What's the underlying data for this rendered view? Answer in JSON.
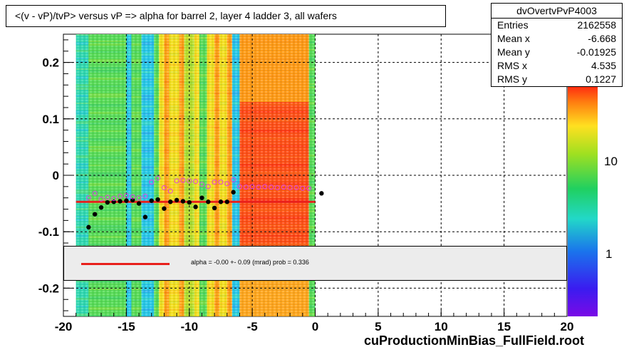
{
  "chart_data": {
    "type": "heatmap",
    "title": "<(v - vP)/tvP> versus   vP => alpha for barrel 2, layer 4 ladder 3, all wafers",
    "xlabel": "cuProductionMinBias_FullField.root",
    "ylabel": "",
    "xlim": [
      -20,
      20
    ],
    "ylim": [
      -0.25,
      0.25
    ],
    "x_ticks": [
      -20,
      -15,
      -10,
      -5,
      0,
      5,
      10,
      15,
      20
    ],
    "y_ticks": [
      0.2,
      0.1,
      0,
      -0.1,
      -0.2
    ],
    "x_tick_labels": [
      "-20",
      "-15",
      "-10",
      "-5",
      "0",
      "5",
      "10",
      "15",
      "20"
    ],
    "y_tick_labels": [
      "0.2",
      "0.1",
      "0",
      "-0.1",
      "-0.2"
    ],
    "grid": true,
    "heatmap_x_range": [
      -19.0,
      0.0
    ],
    "heatmap_columns": [
      {
        "x0": -19.0,
        "x1": -18.0,
        "tone": "cyan-green"
      },
      {
        "x0": -18.0,
        "x1": -15.0,
        "tone": "green"
      },
      {
        "x0": -15.0,
        "x1": -14.6,
        "tone": "cyan"
      },
      {
        "x0": -14.6,
        "x1": -13.8,
        "tone": "green"
      },
      {
        "x0": -13.8,
        "x1": -12.8,
        "tone": "cyan"
      },
      {
        "x0": -12.8,
        "x1": -12.4,
        "tone": "green"
      },
      {
        "x0": -12.4,
        "x1": -12.0,
        "tone": "yellow"
      },
      {
        "x0": -12.0,
        "x1": -11.6,
        "tone": "orange"
      },
      {
        "x0": -11.6,
        "x1": -10.8,
        "tone": "yellow"
      },
      {
        "x0": -10.8,
        "x1": -10.4,
        "tone": "orange"
      },
      {
        "x0": -10.4,
        "x1": -9.6,
        "tone": "yellow-green"
      },
      {
        "x0": -9.6,
        "x1": -9.2,
        "tone": "yellow"
      },
      {
        "x0": -9.2,
        "x1": -8.6,
        "tone": "green"
      },
      {
        "x0": -8.6,
        "x1": -8.0,
        "tone": "yellow"
      },
      {
        "x0": -8.0,
        "x1": -7.6,
        "tone": "orange"
      },
      {
        "x0": -7.6,
        "x1": -7.0,
        "tone": "yellow"
      },
      {
        "x0": -7.0,
        "x1": -6.6,
        "tone": "orange"
      },
      {
        "x0": -6.6,
        "x1": -6.0,
        "tone": "cyan"
      },
      {
        "x0": -6.0,
        "x1": -0.5,
        "tone": "orange-red"
      },
      {
        "x0": -0.5,
        "x1": 0.0,
        "tone": "green"
      }
    ],
    "series": [
      {
        "marker": "filled-circle",
        "color": "#000000",
        "x": [
          -18.0,
          -17.5,
          -17.0,
          -16.5,
          -16.0,
          -15.5,
          -15.0,
          -14.5,
          -14.0,
          -13.5,
          -13.0,
          -12.5,
          -12.0,
          -11.5,
          -11.0,
          -10.5,
          -10.0,
          -9.5,
          -9.0,
          -8.5,
          -8.0,
          -7.5,
          -7.0,
          -6.5,
          0.5
        ],
        "y": [
          -0.092,
          -0.069,
          -0.057,
          -0.048,
          -0.047,
          -0.046,
          -0.045,
          -0.044,
          -0.05,
          -0.074,
          -0.045,
          -0.043,
          -0.059,
          -0.047,
          -0.044,
          -0.046,
          -0.048,
          -0.056,
          -0.04,
          -0.047,
          -0.058,
          -0.047,
          -0.047,
          -0.03,
          -0.032
        ]
      },
      {
        "marker": "open-circle",
        "color": "#e040e0",
        "x": [
          -18.0,
          -17.5,
          -17.0,
          -16.5,
          -16.0,
          -15.5,
          -15.0,
          -14.5,
          -14.0,
          -13.5,
          -13.0,
          -12.5,
          -12.0,
          -11.5,
          -11.0,
          -10.5,
          -10.0,
          -9.5,
          -9.0,
          -8.5,
          -8.0,
          -7.5,
          -7.0,
          -6.5,
          -6.0,
          -5.5,
          -5.0,
          -4.5,
          -4.0,
          -3.5,
          -3.0,
          -2.5,
          -2.0,
          -1.5,
          -1.0,
          -0.5
        ],
        "y": [
          -0.04,
          -0.032,
          -0.042,
          -0.039,
          -0.041,
          -0.037,
          -0.036,
          -0.038,
          -0.04,
          -0.037,
          -0.012,
          -0.005,
          -0.022,
          -0.028,
          -0.01,
          -0.009,
          -0.01,
          -0.011,
          -0.016,
          -0.02,
          -0.012,
          -0.012,
          -0.015,
          -0.008,
          -0.02,
          -0.021,
          -0.02,
          -0.021,
          -0.02,
          -0.021,
          -0.022,
          -0.021,
          -0.022,
          -0.022,
          -0.023,
          -0.023
        ]
      }
    ],
    "fit_line": {
      "x": [
        -19.0,
        0.0
      ],
      "y": [
        -0.047,
        -0.047
      ],
      "color": "#e8201c"
    },
    "palette_ticks": [
      "10",
      "1"
    ]
  },
  "stats": {
    "name": "dvOvertvPvP4003",
    "rows": [
      {
        "label": "Entries",
        "value": "2162558"
      },
      {
        "label": "Mean x",
        "value": "-6.668"
      },
      {
        "label": "Mean y",
        "value": "-0.01925"
      },
      {
        "label": "RMS x",
        "value": "4.535"
      },
      {
        "label": "RMS y",
        "value": "0.1227"
      }
    ]
  },
  "fit_legend": {
    "text": "alpha =   -0.00 +-  0.09 (mrad) prob = 0.336"
  }
}
